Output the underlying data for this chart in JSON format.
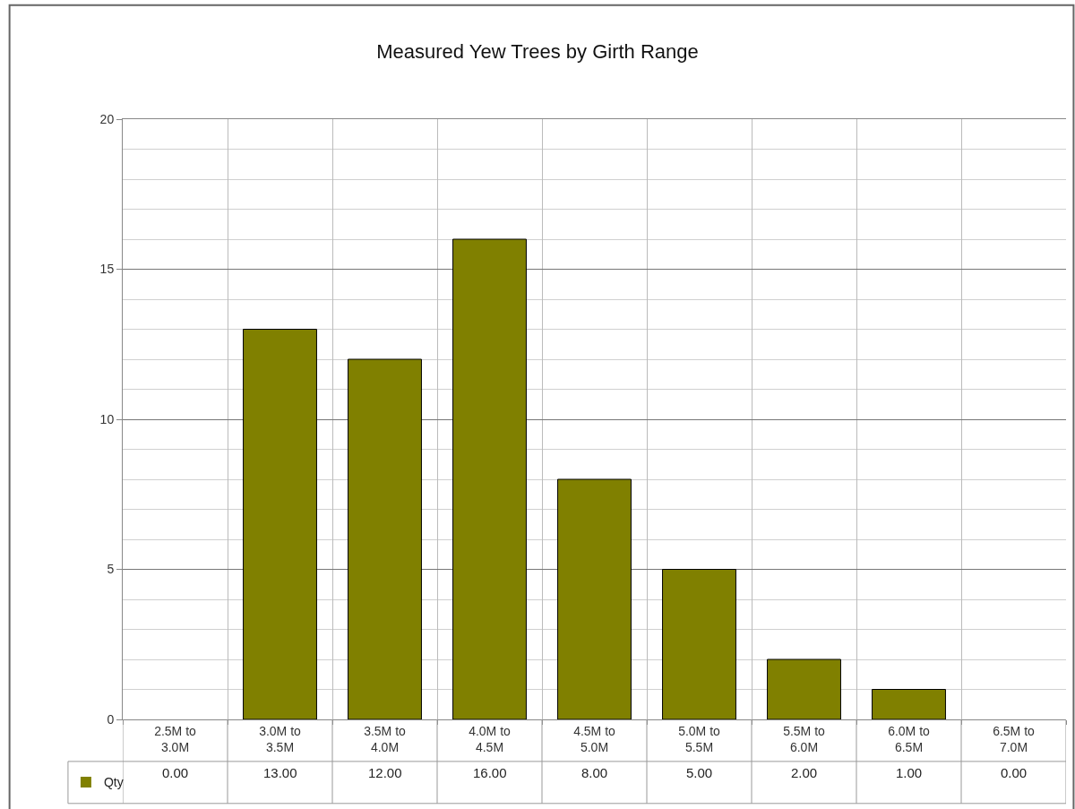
{
  "chart_data": {
    "type": "bar",
    "title": "Measured Yew Trees by Girth Range",
    "categories": [
      "2.5M to 3.0M",
      "3.0M to 3.5M",
      "3.5M to 4.0M",
      "4.0M to 4.5M",
      "4.5M to 5.0M",
      "5.0M to 5.5M",
      "5.5M to 6.0M",
      "6.0M to 6.5M",
      "6.5M to 7.0M"
    ],
    "series": [
      {
        "name": "Qty",
        "color": "#808000",
        "values": [
          0,
          13,
          12,
          16,
          8,
          5,
          2,
          1,
          0
        ]
      }
    ],
    "value_labels": [
      "0.00",
      "13.00",
      "12.00",
      "16.00",
      "8.00",
      "5.00",
      "2.00",
      "1.00",
      "0.00"
    ],
    "ylim": [
      0,
      20
    ],
    "yticks": [
      0,
      5,
      10,
      15,
      20
    ],
    "grid": true,
    "legend": "bottom left"
  }
}
